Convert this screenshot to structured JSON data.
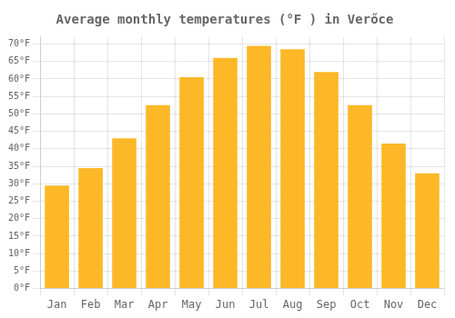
{
  "chart_data": {
    "type": "bar",
    "title": "Average monthly temperatures (°F ) in Verőce",
    "categories": [
      "Jan",
      "Feb",
      "Mar",
      "Apr",
      "May",
      "Jun",
      "Jul",
      "Aug",
      "Sep",
      "Oct",
      "Nov",
      "Dec"
    ],
    "values": [
      29.5,
      34.5,
      43.0,
      52.5,
      60.5,
      66.0,
      69.5,
      68.5,
      62.0,
      52.5,
      41.5,
      33.0
    ],
    "color": "#FDB827",
    "ylim": [
      0,
      72
    ],
    "yticks": [
      {
        "value": 0,
        "label": "0°F"
      },
      {
        "value": 5,
        "label": "5°F"
      },
      {
        "value": 10,
        "label": "10°F"
      },
      {
        "value": 15,
        "label": "15°F"
      },
      {
        "value": 20,
        "label": "20°F"
      },
      {
        "value": 25,
        "label": "25°F"
      },
      {
        "value": 30,
        "label": "30°F"
      },
      {
        "value": 35,
        "label": "35°F"
      },
      {
        "value": 40,
        "label": "40°F"
      },
      {
        "value": 45,
        "label": "45°F"
      },
      {
        "value": 50,
        "label": "50°F"
      },
      {
        "value": 55,
        "label": "55°F"
      },
      {
        "value": 60,
        "label": "60°F"
      },
      {
        "value": 65,
        "label": "65°F"
      },
      {
        "value": 70,
        "label": "70°F"
      }
    ],
    "grid": true
  }
}
